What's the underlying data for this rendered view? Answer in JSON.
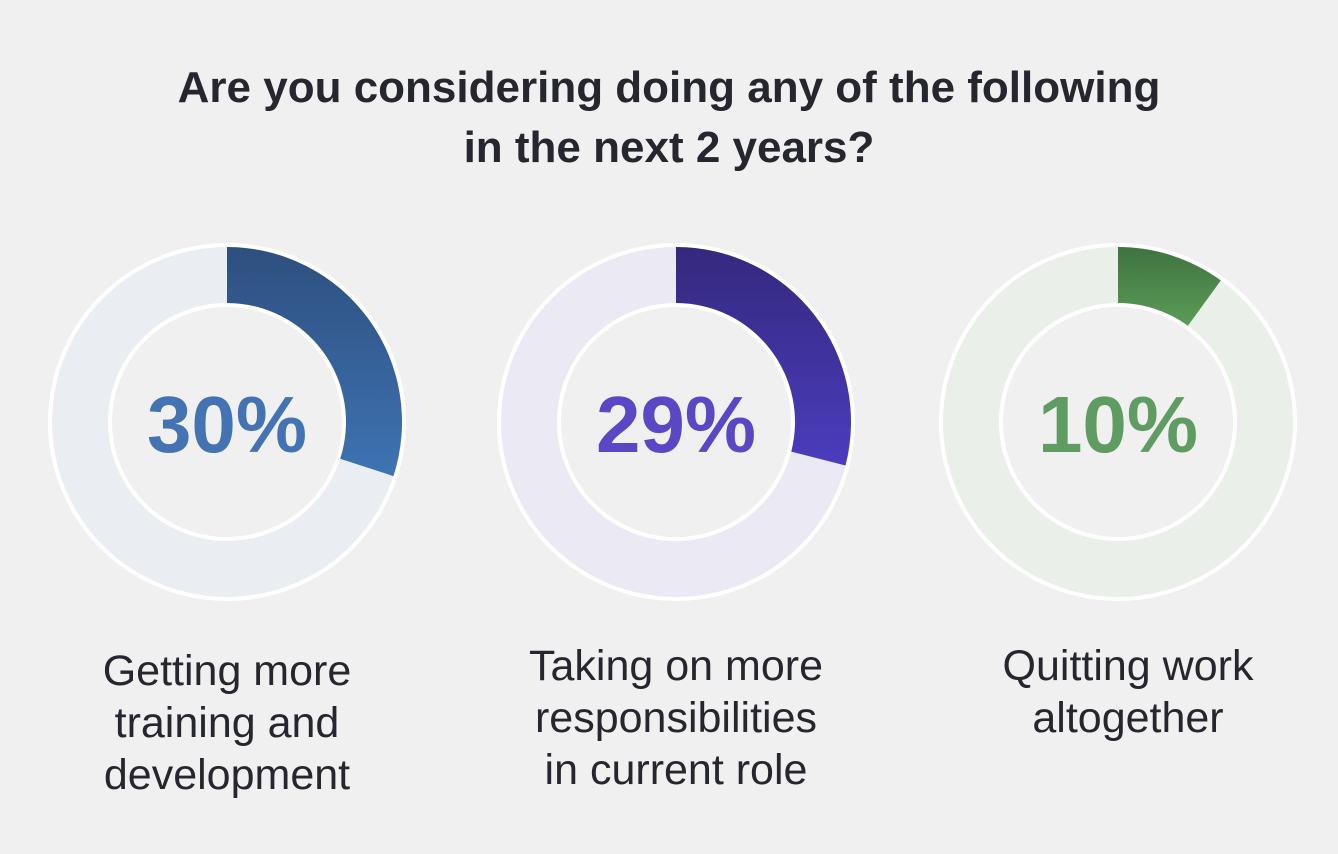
{
  "chart_data": {
    "type": "pie",
    "title_lines": [
      "Are you considering doing any of the following",
      "in the next 2 years?"
    ],
    "series": [
      {
        "label_lines": [
          "Getting more",
          "training and",
          "development"
        ],
        "value": 30,
        "value_label": "30%",
        "color": "#3c6fad",
        "track_color": "#eaeef3",
        "text_color": "#4473b4"
      },
      {
        "label_lines": [
          "Taking on more",
          "responsibilities",
          "in current role"
        ],
        "value": 29,
        "value_label": "29%",
        "color": "#4b3cb8",
        "track_color": "#ebe9f4",
        "text_color": "#5a47c6"
      },
      {
        "label_lines": [
          "Quitting work",
          "altogether"
        ],
        "value": 10,
        "value_label": "10%",
        "color": "#4c8a4c",
        "track_color": "#ebefea",
        "text_color": "#5f9c62"
      }
    ]
  }
}
